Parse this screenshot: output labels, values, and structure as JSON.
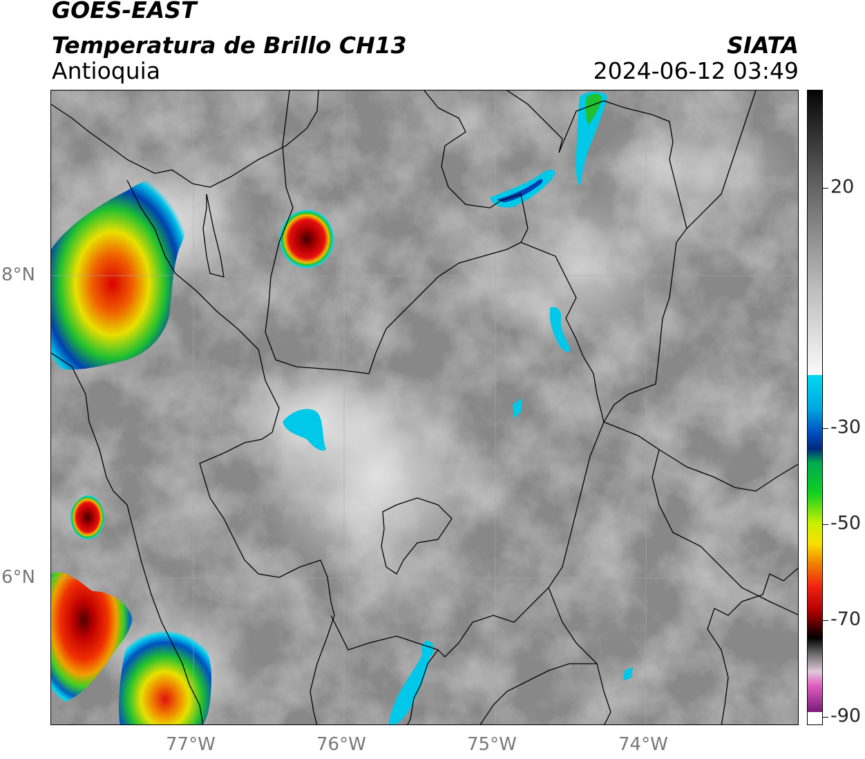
{
  "header": {
    "satellite": "GOES-EAST",
    "product": "Temperatura de Brillo CH13",
    "region": "Antioquia",
    "agency": "SIATA",
    "datetime": "2024-06-12 03:49"
  },
  "map": {
    "lat_ticks": [
      "8°N",
      "6°N"
    ],
    "lon_ticks": [
      "77°W",
      "76°W",
      "75°W",
      "74°W"
    ]
  },
  "colorbar": {
    "ticks": [
      "20",
      "-30",
      "-50",
      "-70",
      "-90"
    ],
    "colors": {
      "cyan": "#00d8f0",
      "blue": "#0050c0",
      "dark_blue": "#002a80",
      "green": "#00c838",
      "yellow": "#f0f000",
      "orange": "#f08000",
      "red": "#e01010",
      "dark_red": "#600000",
      "black": "#000000",
      "magenta": "#e060c0",
      "purple": "#8a1a8a"
    }
  }
}
